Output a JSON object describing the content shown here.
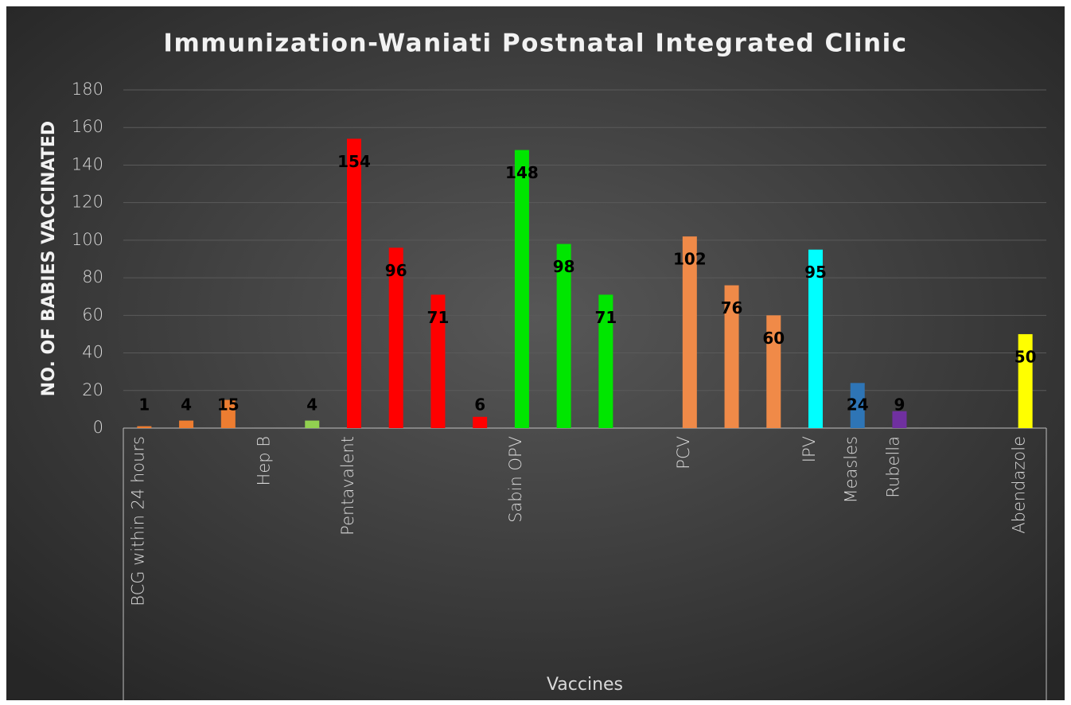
{
  "chart_data": {
    "type": "bar",
    "title": "Immunization-Waniati Postnatal Integrated Clinic",
    "ylabel": "NO. OF BABIES VACCINATED",
    "xlabel": "Vaccines",
    "categories": [
      "BCG within 24 hours",
      null,
      null,
      "Hep B",
      null,
      "Pentavalent",
      null,
      null,
      null,
      "Sabin OPV",
      null,
      null,
      null,
      "PCV",
      null,
      null,
      "IPV",
      "Measles",
      "Rubella",
      null,
      null,
      "Abendazole"
    ],
    "values": [
      1,
      4,
      15,
      null,
      4,
      154,
      96,
      71,
      6,
      148,
      98,
      71,
      null,
      102,
      76,
      60,
      95,
      24,
      9,
      null,
      null,
      50
    ],
    "colors": [
      "#ed7d31",
      "#ed7d31",
      "#ed7d31",
      null,
      "#92d050",
      "#ff0000",
      "#ff0000",
      "#ff0000",
      "#ff0000",
      "#00e600",
      "#00e600",
      "#00e600",
      null,
      "#f08a48",
      "#f08a48",
      "#f08a48",
      "#00ffff",
      "#2e75b6",
      "#7030a0",
      null,
      null,
      "#ffff00"
    ],
    "ylim": [
      0,
      180
    ],
    "yticks": [
      0,
      20,
      40,
      60,
      80,
      100,
      120,
      140,
      160,
      180
    ],
    "grid": true
  }
}
